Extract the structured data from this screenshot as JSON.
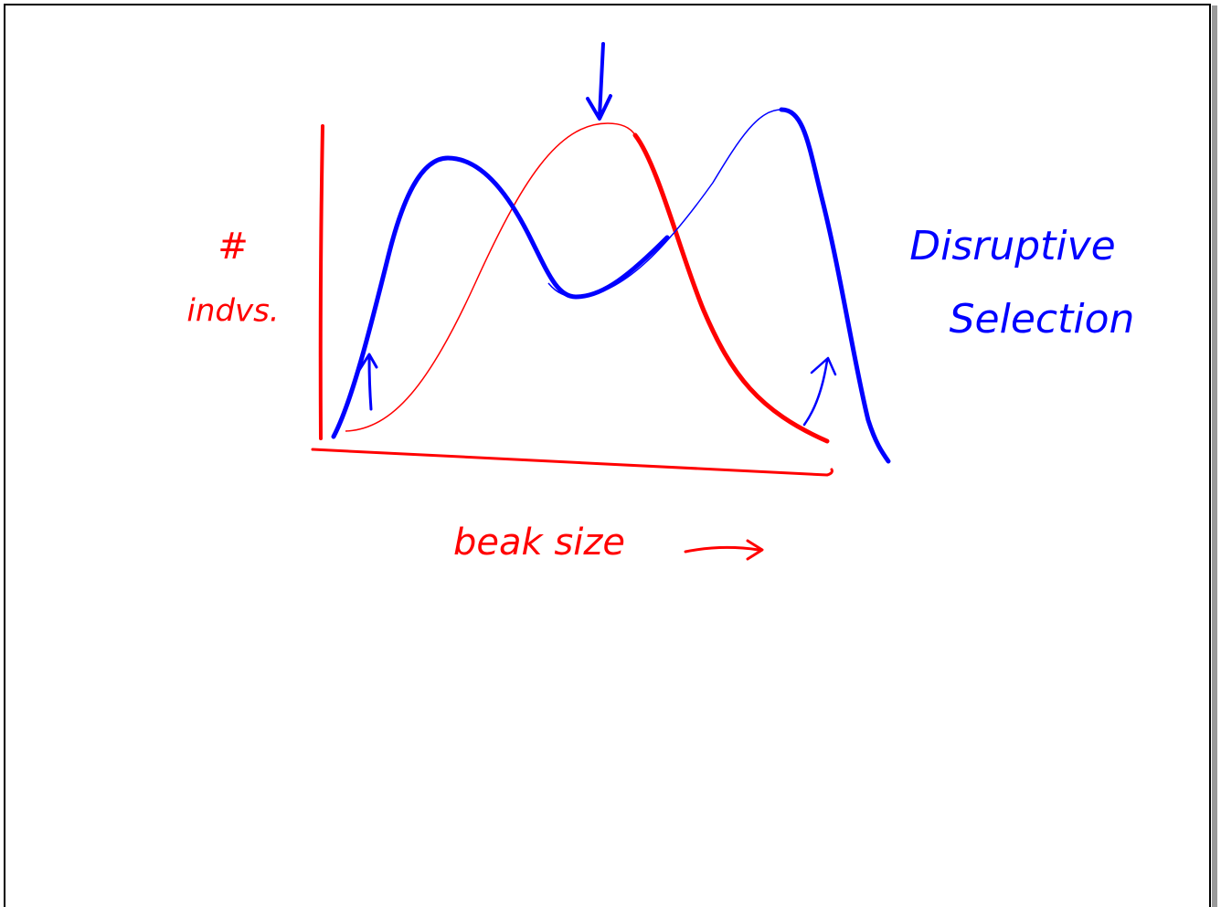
{
  "y_axis_label": {
    "symbol": "#",
    "text": "indvs."
  },
  "x_axis_label": "beak size",
  "title": {
    "line1": "Disruptive",
    "line2": "Selection"
  }
}
